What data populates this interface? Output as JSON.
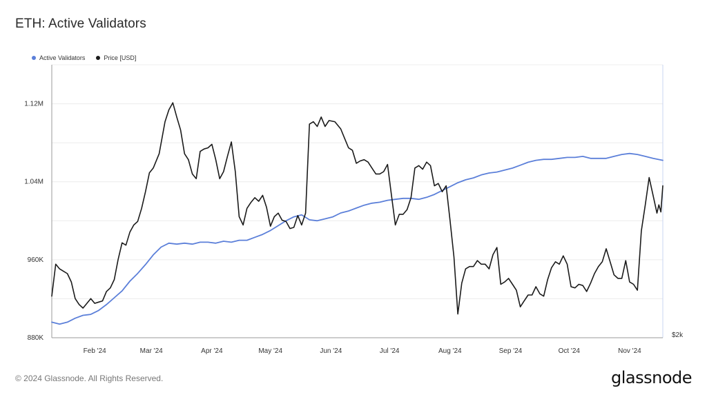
{
  "title": "ETH: Active Validators",
  "legend": [
    {
      "label": "Active Validators",
      "color": "#5b7fd9"
    },
    {
      "label": "Price [USD]",
      "color": "#1a1a1a"
    }
  ],
  "footer": "© 2024 Glassnode. All Rights Reserved.",
  "brand": "glassnode",
  "chart_data": {
    "type": "line",
    "title": "ETH: Active Validators",
    "grid": true,
    "legend_position": "top-left",
    "y_left": {
      "min": 880000,
      "max": 1160000,
      "ticks": [
        880000,
        960000,
        1040000,
        1120000
      ],
      "tick_labels": [
        "880K",
        "960K",
        "1.04M",
        "1.12M"
      ]
    },
    "y_right": {
      "label": "$2k",
      "min": 2000,
      "max": 4300
    },
    "x": {
      "start": "2024-01-10",
      "end": "2024-11-18",
      "ticks": [
        "2024-02-01",
        "2024-03-01",
        "2024-04-01",
        "2024-05-01",
        "2024-06-01",
        "2024-07-01",
        "2024-08-01",
        "2024-09-01",
        "2024-10-01",
        "2024-11-01"
      ],
      "tick_labels": [
        "Feb '24",
        "Mar '24",
        "Apr '24",
        "May '24",
        "Jun '24",
        "Jul '24",
        "Aug '24",
        "Sep '24",
        "Oct '24",
        "Nov '24"
      ]
    },
    "series": [
      {
        "name": "Active Validators",
        "axis": "left",
        "color": "#5b7fd9",
        "points": [
          [
            "2024-01-10",
            896000
          ],
          [
            "2024-01-14",
            894000
          ],
          [
            "2024-01-18",
            896000
          ],
          [
            "2024-01-22",
            900000
          ],
          [
            "2024-01-26",
            903000
          ],
          [
            "2024-01-30",
            904000
          ],
          [
            "2024-02-03",
            908000
          ],
          [
            "2024-02-07",
            914000
          ],
          [
            "2024-02-11",
            921000
          ],
          [
            "2024-02-15",
            928000
          ],
          [
            "2024-02-19",
            938000
          ],
          [
            "2024-02-23",
            946000
          ],
          [
            "2024-02-27",
            955000
          ],
          [
            "2024-03-02",
            965000
          ],
          [
            "2024-03-06",
            973000
          ],
          [
            "2024-03-10",
            977000
          ],
          [
            "2024-03-14",
            976000
          ],
          [
            "2024-03-18",
            977000
          ],
          [
            "2024-03-22",
            976000
          ],
          [
            "2024-03-26",
            978000
          ],
          [
            "2024-03-30",
            978000
          ],
          [
            "2024-04-03",
            977000
          ],
          [
            "2024-04-07",
            979000
          ],
          [
            "2024-04-11",
            978000
          ],
          [
            "2024-04-15",
            980000
          ],
          [
            "2024-04-19",
            980000
          ],
          [
            "2024-04-23",
            983000
          ],
          [
            "2024-04-27",
            986000
          ],
          [
            "2024-05-01",
            990000
          ],
          [
            "2024-05-05",
            995000
          ],
          [
            "2024-05-09",
            1000000
          ],
          [
            "2024-05-13",
            1004000
          ],
          [
            "2024-05-17",
            1006000
          ],
          [
            "2024-05-21",
            1001000
          ],
          [
            "2024-05-25",
            1000000
          ],
          [
            "2024-05-29",
            1002000
          ],
          [
            "2024-06-02",
            1004000
          ],
          [
            "2024-06-06",
            1008000
          ],
          [
            "2024-06-10",
            1010000
          ],
          [
            "2024-06-14",
            1013000
          ],
          [
            "2024-06-18",
            1016000
          ],
          [
            "2024-06-22",
            1018000
          ],
          [
            "2024-06-26",
            1019000
          ],
          [
            "2024-06-30",
            1021000
          ],
          [
            "2024-07-04",
            1022000
          ],
          [
            "2024-07-08",
            1023000
          ],
          [
            "2024-07-12",
            1023000
          ],
          [
            "2024-07-16",
            1022000
          ],
          [
            "2024-07-20",
            1024000
          ],
          [
            "2024-07-24",
            1027000
          ],
          [
            "2024-07-28",
            1031000
          ],
          [
            "2024-08-01",
            1035000
          ],
          [
            "2024-08-05",
            1039000
          ],
          [
            "2024-08-09",
            1042000
          ],
          [
            "2024-08-13",
            1044000
          ],
          [
            "2024-08-17",
            1047000
          ],
          [
            "2024-08-21",
            1049000
          ],
          [
            "2024-08-25",
            1050000
          ],
          [
            "2024-08-29",
            1052000
          ],
          [
            "2024-09-02",
            1054000
          ],
          [
            "2024-09-06",
            1057000
          ],
          [
            "2024-09-10",
            1060000
          ],
          [
            "2024-09-14",
            1062000
          ],
          [
            "2024-09-18",
            1063000
          ],
          [
            "2024-09-22",
            1063000
          ],
          [
            "2024-09-26",
            1064000
          ],
          [
            "2024-09-30",
            1065000
          ],
          [
            "2024-10-04",
            1065000
          ],
          [
            "2024-10-08",
            1066000
          ],
          [
            "2024-10-12",
            1064000
          ],
          [
            "2024-10-16",
            1064000
          ],
          [
            "2024-10-20",
            1064000
          ],
          [
            "2024-10-24",
            1066000
          ],
          [
            "2024-10-28",
            1068000
          ],
          [
            "2024-11-01",
            1069000
          ],
          [
            "2024-11-05",
            1068000
          ],
          [
            "2024-11-09",
            1066000
          ],
          [
            "2024-11-13",
            1064000
          ],
          [
            "2024-11-18",
            1062000
          ]
        ]
      },
      {
        "name": "Price [USD]",
        "axis": "right",
        "color": "#1a1a1a",
        "points": [
          [
            "2024-01-10",
            2350
          ],
          [
            "2024-01-12",
            2620
          ],
          [
            "2024-01-14",
            2580
          ],
          [
            "2024-01-16",
            2560
          ],
          [
            "2024-01-18",
            2540
          ],
          [
            "2024-01-20",
            2470
          ],
          [
            "2024-01-22",
            2330
          ],
          [
            "2024-01-24",
            2280
          ],
          [
            "2024-01-26",
            2250
          ],
          [
            "2024-01-28",
            2290
          ],
          [
            "2024-01-30",
            2330
          ],
          [
            "2024-02-01",
            2290
          ],
          [
            "2024-02-03",
            2300
          ],
          [
            "2024-02-05",
            2310
          ],
          [
            "2024-02-07",
            2390
          ],
          [
            "2024-02-09",
            2420
          ],
          [
            "2024-02-11",
            2490
          ],
          [
            "2024-02-13",
            2660
          ],
          [
            "2024-02-15",
            2800
          ],
          [
            "2024-02-17",
            2780
          ],
          [
            "2024-02-19",
            2890
          ],
          [
            "2024-02-21",
            2950
          ],
          [
            "2024-02-23",
            2980
          ],
          [
            "2024-02-25",
            3090
          ],
          [
            "2024-02-27",
            3230
          ],
          [
            "2024-02-29",
            3390
          ],
          [
            "2024-03-02",
            3430
          ],
          [
            "2024-03-05",
            3550
          ],
          [
            "2024-03-08",
            3820
          ],
          [
            "2024-03-10",
            3920
          ],
          [
            "2024-03-12",
            3980
          ],
          [
            "2024-03-14",
            3860
          ],
          [
            "2024-03-16",
            3750
          ],
          [
            "2024-03-18",
            3550
          ],
          [
            "2024-03-20",
            3500
          ],
          [
            "2024-03-22",
            3380
          ],
          [
            "2024-03-24",
            3340
          ],
          [
            "2024-03-26",
            3570
          ],
          [
            "2024-03-28",
            3590
          ],
          [
            "2024-03-30",
            3600
          ],
          [
            "2024-04-01",
            3630
          ],
          [
            "2024-04-03",
            3500
          ],
          [
            "2024-04-05",
            3340
          ],
          [
            "2024-04-07",
            3400
          ],
          [
            "2024-04-09",
            3530
          ],
          [
            "2024-04-11",
            3650
          ],
          [
            "2024-04-13",
            3400
          ],
          [
            "2024-04-15",
            3020
          ],
          [
            "2024-04-17",
            2950
          ],
          [
            "2024-04-19",
            3090
          ],
          [
            "2024-04-21",
            3140
          ],
          [
            "2024-04-23",
            3180
          ],
          [
            "2024-04-25",
            3150
          ],
          [
            "2024-04-27",
            3200
          ],
          [
            "2024-04-29",
            3100
          ],
          [
            "2024-05-01",
            2940
          ],
          [
            "2024-05-03",
            3020
          ],
          [
            "2024-05-05",
            3050
          ],
          [
            "2024-05-07",
            2990
          ],
          [
            "2024-05-09",
            2980
          ],
          [
            "2024-05-11",
            2920
          ],
          [
            "2024-05-13",
            2930
          ],
          [
            "2024-05-15",
            3030
          ],
          [
            "2024-05-17",
            2950
          ],
          [
            "2024-05-19",
            3050
          ],
          [
            "2024-05-21",
            3800
          ],
          [
            "2024-05-23",
            3820
          ],
          [
            "2024-05-25",
            3780
          ],
          [
            "2024-05-27",
            3860
          ],
          [
            "2024-05-29",
            3780
          ],
          [
            "2024-05-31",
            3830
          ],
          [
            "2024-06-03",
            3820
          ],
          [
            "2024-06-06",
            3760
          ],
          [
            "2024-06-08",
            3680
          ],
          [
            "2024-06-10",
            3600
          ],
          [
            "2024-06-12",
            3580
          ],
          [
            "2024-06-14",
            3470
          ],
          [
            "2024-06-16",
            3490
          ],
          [
            "2024-06-18",
            3500
          ],
          [
            "2024-06-20",
            3480
          ],
          [
            "2024-06-22",
            3430
          ],
          [
            "2024-06-24",
            3380
          ],
          [
            "2024-06-26",
            3380
          ],
          [
            "2024-06-28",
            3400
          ],
          [
            "2024-06-30",
            3460
          ],
          [
            "2024-07-02",
            3200
          ],
          [
            "2024-07-04",
            2950
          ],
          [
            "2024-07-06",
            3040
          ],
          [
            "2024-07-08",
            3040
          ],
          [
            "2024-07-10",
            3080
          ],
          [
            "2024-07-12",
            3180
          ],
          [
            "2024-07-14",
            3430
          ],
          [
            "2024-07-16",
            3450
          ],
          [
            "2024-07-18",
            3420
          ],
          [
            "2024-07-20",
            3480
          ],
          [
            "2024-07-22",
            3450
          ],
          [
            "2024-07-24",
            3280
          ],
          [
            "2024-07-26",
            3300
          ],
          [
            "2024-07-28",
            3230
          ],
          [
            "2024-07-30",
            3280
          ],
          [
            "2024-08-01",
            2990
          ],
          [
            "2024-08-03",
            2680
          ],
          [
            "2024-08-05",
            2200
          ],
          [
            "2024-08-07",
            2460
          ],
          [
            "2024-08-09",
            2580
          ],
          [
            "2024-08-11",
            2600
          ],
          [
            "2024-08-13",
            2600
          ],
          [
            "2024-08-15",
            2650
          ],
          [
            "2024-08-17",
            2620
          ],
          [
            "2024-08-19",
            2620
          ],
          [
            "2024-08-21",
            2580
          ],
          [
            "2024-08-23",
            2700
          ],
          [
            "2024-08-25",
            2760
          ],
          [
            "2024-08-27",
            2450
          ],
          [
            "2024-08-29",
            2470
          ],
          [
            "2024-08-31",
            2500
          ],
          [
            "2024-09-02",
            2450
          ],
          [
            "2024-09-04",
            2400
          ],
          [
            "2024-09-06",
            2260
          ],
          [
            "2024-09-08",
            2310
          ],
          [
            "2024-09-10",
            2360
          ],
          [
            "2024-09-12",
            2360
          ],
          [
            "2024-09-14",
            2430
          ],
          [
            "2024-09-16",
            2370
          ],
          [
            "2024-09-18",
            2350
          ],
          [
            "2024-09-20",
            2490
          ],
          [
            "2024-09-22",
            2590
          ],
          [
            "2024-09-24",
            2640
          ],
          [
            "2024-09-26",
            2620
          ],
          [
            "2024-09-28",
            2690
          ],
          [
            "2024-09-30",
            2620
          ],
          [
            "2024-10-02",
            2430
          ],
          [
            "2024-10-04",
            2420
          ],
          [
            "2024-10-06",
            2450
          ],
          [
            "2024-10-08",
            2440
          ],
          [
            "2024-10-10",
            2390
          ],
          [
            "2024-10-12",
            2460
          ],
          [
            "2024-10-14",
            2540
          ],
          [
            "2024-10-16",
            2600
          ],
          [
            "2024-10-18",
            2640
          ],
          [
            "2024-10-20",
            2750
          ],
          [
            "2024-10-22",
            2640
          ],
          [
            "2024-10-24",
            2530
          ],
          [
            "2024-10-26",
            2500
          ],
          [
            "2024-10-28",
            2500
          ],
          [
            "2024-10-30",
            2650
          ],
          [
            "2024-11-01",
            2470
          ],
          [
            "2024-11-03",
            2450
          ],
          [
            "2024-11-05",
            2400
          ],
          [
            "2024-11-07",
            2900
          ],
          [
            "2024-11-09",
            3120
          ],
          [
            "2024-11-11",
            3350
          ],
          [
            "2024-11-13",
            3200
          ],
          [
            "2024-11-15",
            3050
          ],
          [
            "2024-11-16",
            3120
          ],
          [
            "2024-11-17",
            3060
          ],
          [
            "2024-11-18",
            3280
          ]
        ]
      }
    ]
  }
}
